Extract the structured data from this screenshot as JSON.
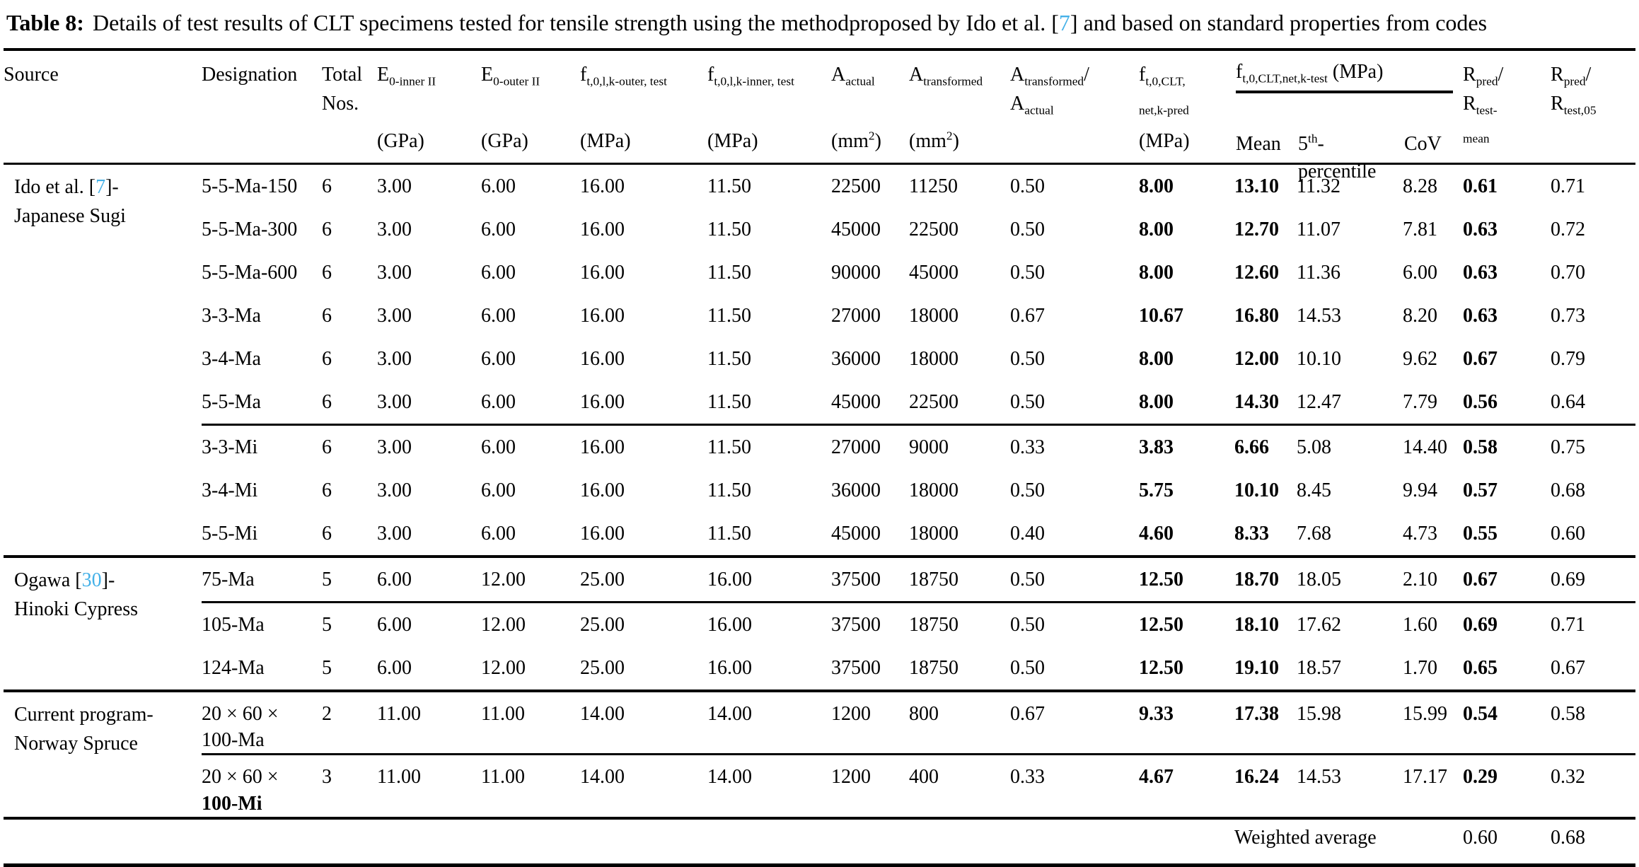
{
  "colors": {
    "reference_link": "#44b1e8",
    "text": "#000000",
    "background": "#ffffff",
    "rule": "#000000"
  },
  "caption": {
    "parts": [
      {
        "text": "Table 8:",
        "style": "bold"
      },
      {
        "text": "Details of test results of CLT specimens tested for tensile strength using the methodproposed by Ido et al. [",
        "style": "normal"
      },
      {
        "text": "7",
        "style": "ref"
      },
      {
        "text": "] and based on standard properties from codes",
        "style": "normal"
      }
    ]
  },
  "header": {
    "source": {
      "lines": [
        "Source"
      ],
      "unit": ""
    },
    "designation": {
      "lines": [
        "Designation"
      ],
      "unit": ""
    },
    "total_nos": {
      "lines": [
        "Total",
        "Nos."
      ],
      "unit": ""
    },
    "e0_inner": {
      "lines": [
        "E_{0-inner II}"
      ],
      "unit": "(GPa)"
    },
    "e0_outer": {
      "lines": [
        "E_{0-outer II}"
      ],
      "unit": "(GPa)"
    },
    "ft_outer_test": {
      "lines": [
        "f_{t,0,l,k-outer, test}"
      ],
      "unit": "(MPa)"
    },
    "ft_inner_test": {
      "lines": [
        "f_{t,0,l,k-inner, test}"
      ],
      "unit": "(MPa)"
    },
    "a_actual": {
      "lines": [
        "A_{actual}"
      ],
      "unit": "(mm^{2})"
    },
    "a_transformed": {
      "lines": [
        "A_{transformed}"
      ],
      "unit": "(mm^{2})"
    },
    "a_ratio": {
      "lines": [
        "A_{transformed}/",
        "A_{actual}"
      ],
      "unit": ""
    },
    "f_pred": {
      "lines": [
        "f_{t,0,CLT,}",
        "_{net,k-pred}"
      ],
      "unit": "(MPa)"
    },
    "f_test_group": {
      "label": "f_{t,0,CLT,net,k-test} (MPa)",
      "sub_mean": "Mean",
      "sub_p5_lines": [
        "5^{th}-",
        "percentile"
      ],
      "sub_cov": "CoV"
    },
    "r_mean": {
      "lines": [
        "R_{pred}/",
        "R_{test-}",
        "_{mean}"
      ]
    },
    "r_05": {
      "lines": [
        "R_{pred}/",
        "R_{test,05}"
      ]
    }
  },
  "table": {
    "value_columns": [
      "total-nos",
      "e0-inner",
      "e0-outer",
      "ft-outer-test",
      "ft-inner-test",
      "a-actual",
      "a-transformed",
      "a-ratio",
      "f-pred",
      "mean",
      "p5",
      "cov",
      "r-pred-rtest-mean",
      "r-pred-rtest-05"
    ],
    "bold_value_indices": [
      8,
      9,
      12
    ],
    "groups": [
      {
        "source": {
          "pre": "Ido et al. [",
          "ref": "7",
          "post": "]-",
          "line2": "Japanese Sugi"
        },
        "subgroups": [
          {
            "rows": [
              {
                "designation_lines": [
                  "5-5-Ma-150"
                ],
                "designation_bold_line": -1,
                "values": [
                  "6",
                  "3.00",
                  "6.00",
                  "16.00",
                  "11.50",
                  "22500",
                  "11250",
                  "0.50",
                  "8.00",
                  "13.10",
                  "11.32",
                  "8.28",
                  "0.61",
                  "0.71"
                ]
              },
              {
                "designation_lines": [
                  "5-5-Ma-300"
                ],
                "designation_bold_line": -1,
                "values": [
                  "6",
                  "3.00",
                  "6.00",
                  "16.00",
                  "11.50",
                  "45000",
                  "22500",
                  "0.50",
                  "8.00",
                  "12.70",
                  "11.07",
                  "7.81",
                  "0.63",
                  "0.72"
                ]
              },
              {
                "designation_lines": [
                  "5-5-Ma-600"
                ],
                "designation_bold_line": -1,
                "values": [
                  "6",
                  "3.00",
                  "6.00",
                  "16.00",
                  "11.50",
                  "90000",
                  "45000",
                  "0.50",
                  "8.00",
                  "12.60",
                  "11.36",
                  "6.00",
                  "0.63",
                  "0.70"
                ]
              },
              {
                "designation_lines": [
                  "3-3-Ma"
                ],
                "designation_bold_line": -1,
                "values": [
                  "6",
                  "3.00",
                  "6.00",
                  "16.00",
                  "11.50",
                  "27000",
                  "18000",
                  "0.67",
                  "10.67",
                  "16.80",
                  "14.53",
                  "8.20",
                  "0.63",
                  "0.73"
                ]
              },
              {
                "designation_lines": [
                  "3-4-Ma"
                ],
                "designation_bold_line": -1,
                "values": [
                  "6",
                  "3.00",
                  "6.00",
                  "16.00",
                  "11.50",
                  "36000",
                  "18000",
                  "0.50",
                  "8.00",
                  "12.00",
                  "10.10",
                  "9.62",
                  "0.67",
                  "0.79"
                ]
              },
              {
                "designation_lines": [
                  "5-5-Ma"
                ],
                "designation_bold_line": -1,
                "values": [
                  "6",
                  "3.00",
                  "6.00",
                  "16.00",
                  "11.50",
                  "45000",
                  "22500",
                  "0.50",
                  "8.00",
                  "14.30",
                  "12.47",
                  "7.79",
                  "0.56",
                  "0.64"
                ]
              }
            ]
          },
          {
            "rows": [
              {
                "designation_lines": [
                  "3-3-Mi"
                ],
                "designation_bold_line": -1,
                "values": [
                  "6",
                  "3.00",
                  "6.00",
                  "16.00",
                  "11.50",
                  "27000",
                  "9000",
                  "0.33",
                  "3.83",
                  "6.66",
                  "5.08",
                  "14.40",
                  "0.58",
                  "0.75"
                ]
              },
              {
                "designation_lines": [
                  "3-4-Mi"
                ],
                "designation_bold_line": -1,
                "values": [
                  "6",
                  "3.00",
                  "6.00",
                  "16.00",
                  "11.50",
                  "36000",
                  "18000",
                  "0.50",
                  "5.75",
                  "10.10",
                  "8.45",
                  "9.94",
                  "0.57",
                  "0.68"
                ]
              },
              {
                "designation_lines": [
                  "5-5-Mi"
                ],
                "designation_bold_line": -1,
                "values": [
                  "6",
                  "3.00",
                  "6.00",
                  "16.00",
                  "11.50",
                  "45000",
                  "18000",
                  "0.40",
                  "4.60",
                  "8.33",
                  "7.68",
                  "4.73",
                  "0.55",
                  "0.60"
                ]
              }
            ]
          }
        ]
      },
      {
        "source": {
          "pre": "Ogawa [",
          "ref": "30",
          "post": "]-",
          "line2": "Hinoki Cypress"
        },
        "subgroups": [
          {
            "rows": [
              {
                "designation_lines": [
                  "75-Ma"
                ],
                "designation_bold_line": -1,
                "values": [
                  "5",
                  "6.00",
                  "12.00",
                  "25.00",
                  "16.00",
                  "37500",
                  "18750",
                  "0.50",
                  "12.50",
                  "18.70",
                  "18.05",
                  "2.10",
                  "0.67",
                  "0.69"
                ]
              }
            ]
          },
          {
            "rows": [
              {
                "designation_lines": [
                  "105-Ma"
                ],
                "designation_bold_line": -1,
                "values": [
                  "5",
                  "6.00",
                  "12.00",
                  "25.00",
                  "16.00",
                  "37500",
                  "18750",
                  "0.50",
                  "12.50",
                  "18.10",
                  "17.62",
                  "1.60",
                  "0.69",
                  "0.71"
                ]
              },
              {
                "designation_lines": [
                  "124-Ma"
                ],
                "designation_bold_line": -1,
                "values": [
                  "5",
                  "6.00",
                  "12.00",
                  "25.00",
                  "16.00",
                  "37500",
                  "18750",
                  "0.50",
                  "12.50",
                  "19.10",
                  "18.57",
                  "1.70",
                  "0.65",
                  "0.67"
                ]
              }
            ]
          }
        ]
      },
      {
        "source": {
          "pre": "Current program-",
          "ref": "",
          "post": "",
          "line2": "Norway Spruce"
        },
        "subgroups": [
          {
            "rows": [
              {
                "designation_lines": [
                  "20 × 60 ×",
                  "100-Ma"
                ],
                "designation_bold_line": -1,
                "values": [
                  "2",
                  "11.00",
                  "11.00",
                  "14.00",
                  "14.00",
                  "1200",
                  "800",
                  "0.67",
                  "9.33",
                  "17.38",
                  "15.98",
                  "15.99",
                  "0.54",
                  "0.58"
                ]
              }
            ]
          },
          {
            "rows": [
              {
                "designation_lines": [
                  "20 × 60 ×",
                  "100-Mi"
                ],
                "designation_bold_line": 1,
                "values": [
                  "3",
                  "11.00",
                  "11.00",
                  "14.00",
                  "14.00",
                  "1200",
                  "400",
                  "0.33",
                  "4.67",
                  "16.24",
                  "14.53",
                  "17.17",
                  "0.29",
                  "0.32"
                ]
              }
            ]
          }
        ]
      }
    ],
    "footer": {
      "label": "Weighted average",
      "r_mean": "0.60",
      "r_05": "0.68"
    }
  }
}
